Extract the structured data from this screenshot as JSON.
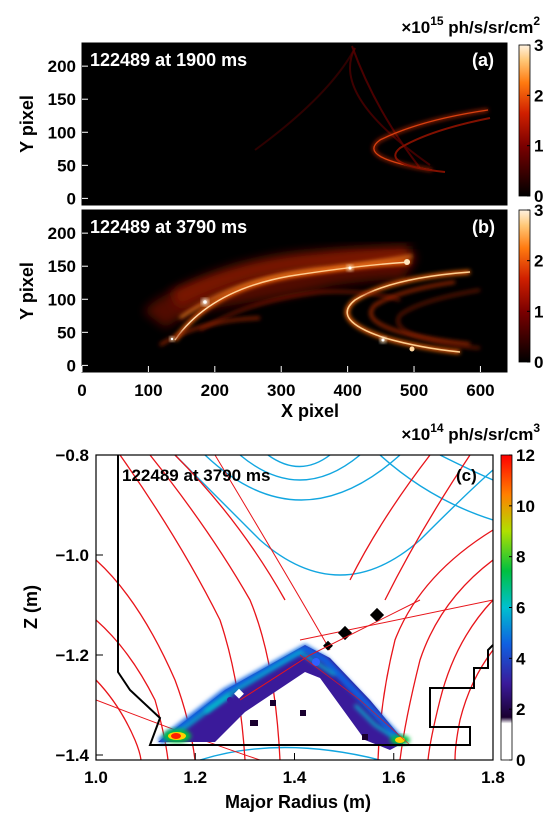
{
  "chart_data": [
    {
      "id": "a",
      "type": "heatmap",
      "panel_label": "(a)",
      "annotation": "122489 at 1900 ms",
      "ylabel": "Y pixel",
      "xlabel": "",
      "xlim": [
        0,
        640
      ],
      "ylim": [
        -10,
        235
      ],
      "y_ticks": [
        0,
        50,
        100,
        150,
        200
      ],
      "colorbar": {
        "unit_prefix": "×10",
        "unit_exp": "15",
        "unit_rest": " ph/s/sr/cm",
        "unit_sup": "2",
        "ticks": [
          0,
          1,
          2,
          3
        ],
        "range": [
          0,
          3
        ]
      }
    },
    {
      "id": "b",
      "type": "heatmap",
      "panel_label": "(b)",
      "annotation": "122489 at 3790 ms",
      "ylabel": "Y pixel",
      "xlabel": "X pixel",
      "xlim": [
        0,
        640
      ],
      "ylim": [
        -10,
        235
      ],
      "x_ticks": [
        0,
        100,
        200,
        300,
        400,
        500,
        600
      ],
      "y_ticks": [
        0,
        50,
        100,
        150,
        200
      ],
      "colorbar": {
        "ticks": [
          0,
          1,
          2,
          3
        ],
        "range": [
          0,
          3
        ]
      }
    },
    {
      "id": "c",
      "type": "heatmap",
      "panel_label": "(c)",
      "annotation": "122489 at 3790 ms",
      "xlabel": "Major Radius (m)",
      "ylabel": "Z (m)",
      "xlim": [
        1.0,
        1.8
      ],
      "ylim": [
        -1.41,
        -0.8
      ],
      "x_ticks": [
        "1.0",
        "1.2",
        "1.4",
        "1.6",
        "1.8"
      ],
      "x_tick_values": [
        1.0,
        1.2,
        1.4,
        1.6,
        1.8
      ],
      "y_ticks": [
        "-0.8",
        "-1.0",
        "-1.2",
        "-1.4"
      ],
      "y_tick_values": [
        -0.8,
        -1.0,
        -1.2,
        -1.4
      ],
      "colorbar": {
        "unit_prefix": "×10",
        "unit_exp": "14",
        "unit_rest": " ph/s/sr/cm",
        "unit_sup": "3",
        "ticks": [
          0,
          2,
          4,
          6,
          8,
          10,
          12
        ],
        "range": [
          0,
          12
        ]
      },
      "contour_colors": {
        "closed": "#e8141a",
        "open": "#12a6e0"
      }
    }
  ]
}
